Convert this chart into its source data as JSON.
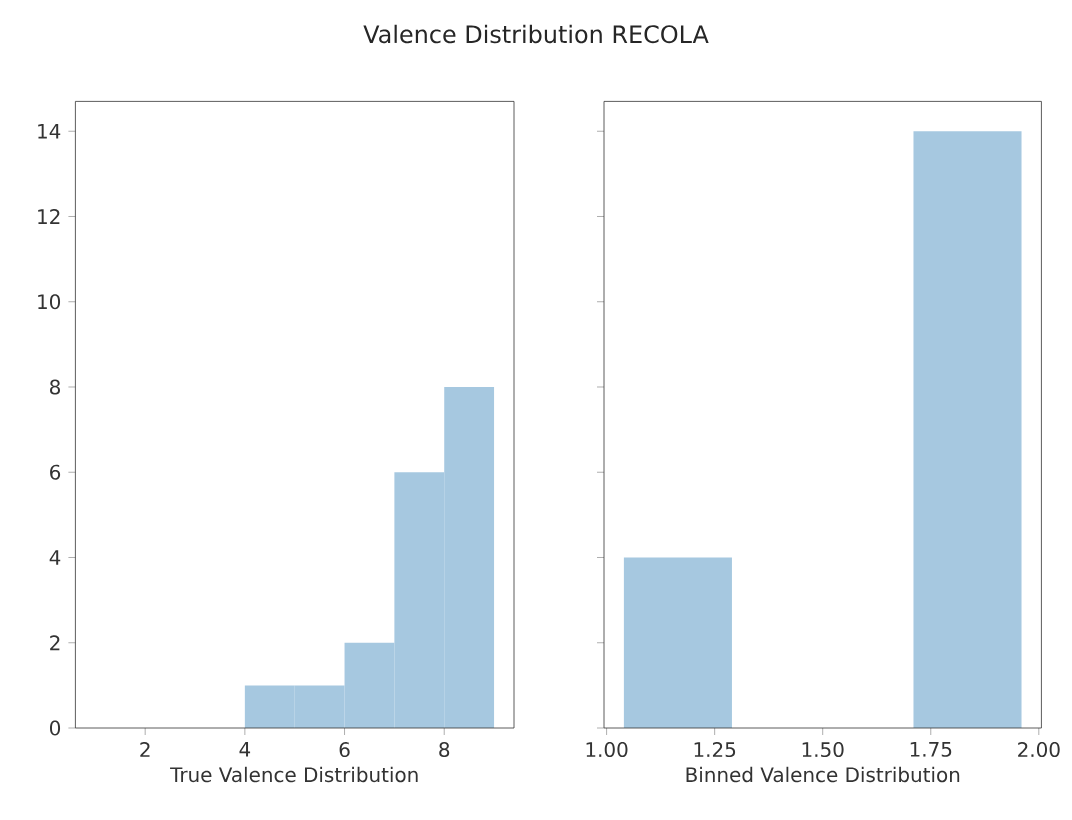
{
  "chart_data": [
    {
      "type": "histogram",
      "title": "Valence Distribution RECOLA",
      "xlabel": "True Valence Distribution",
      "bins": [
        1,
        2,
        3,
        4,
        5,
        6,
        7,
        8,
        9
      ],
      "values": [
        0,
        0,
        0,
        1,
        1,
        2,
        6,
        8
      ],
      "color": "#a6c8e0",
      "xlim": [
        0.6,
        9.4
      ],
      "ylim": [
        0,
        14.7
      ],
      "xticks": [
        2,
        4,
        6,
        8
      ],
      "yticks": [
        0,
        2,
        4,
        6,
        8,
        10,
        12,
        14
      ]
    },
    {
      "type": "histogram",
      "xlabel": "Binned Valence Distribution",
      "bins": [
        1.04,
        1.29,
        1.71,
        1.96
      ],
      "values": [
        4,
        0,
        14
      ],
      "color": "#a6c8e0",
      "xlim": [
        0.994,
        2.006
      ],
      "ylim": [
        0,
        14.7
      ],
      "xticks": [
        {
          "value": 1,
          "label": "1.00"
        },
        {
          "value": 1.25,
          "label": "1.25"
        },
        {
          "value": 1.5,
          "label": "1.50"
        },
        {
          "value": 1.75,
          "label": "1.75"
        },
        {
          "value": 2,
          "label": "2.00"
        }
      ],
      "yticks": [
        0,
        2,
        4,
        6,
        8,
        10,
        12,
        14
      ],
      "tick_labels": "x"
    }
  ]
}
